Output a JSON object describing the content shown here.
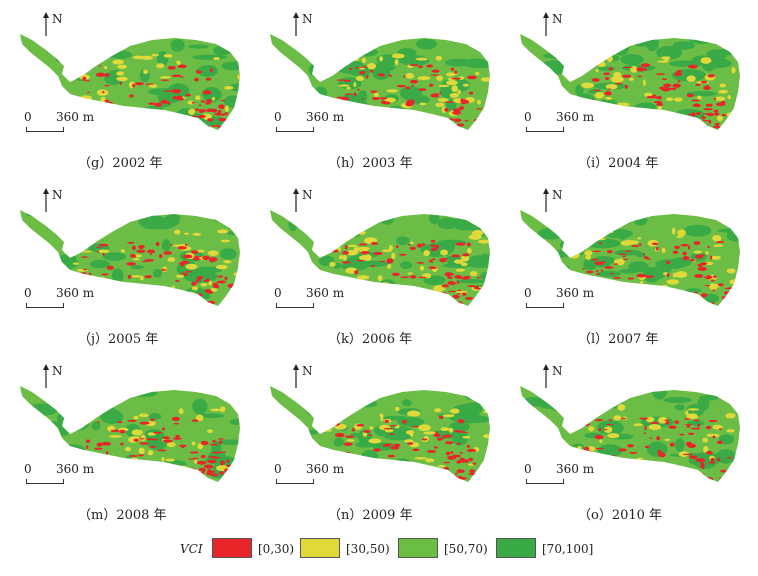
{
  "map_labels": {
    "north": "N",
    "scale_zero": "0",
    "scale_distance": "360 m"
  },
  "panels": [
    {
      "caption": "（g）2002 年"
    },
    {
      "caption": "（h）2003 年"
    },
    {
      "caption": "（i）2004 年"
    },
    {
      "caption": "（j）2005 年"
    },
    {
      "caption": "（k）2006 年"
    },
    {
      "caption": "（l）2007 年"
    },
    {
      "caption": "（m）2008 年"
    },
    {
      "caption": "（n）2009 年"
    },
    {
      "caption": "（o）2010 年"
    }
  ],
  "legend": {
    "title": "VCI",
    "items": [
      {
        "label": "[0,30)",
        "color": "#e8262a"
      },
      {
        "label": "[30,50)",
        "color": "#e0d93a"
      },
      {
        "label": "[50,70)",
        "color": "#6cbd45"
      },
      {
        "label": "[70,100]",
        "color": "#3aaa47"
      }
    ]
  }
}
